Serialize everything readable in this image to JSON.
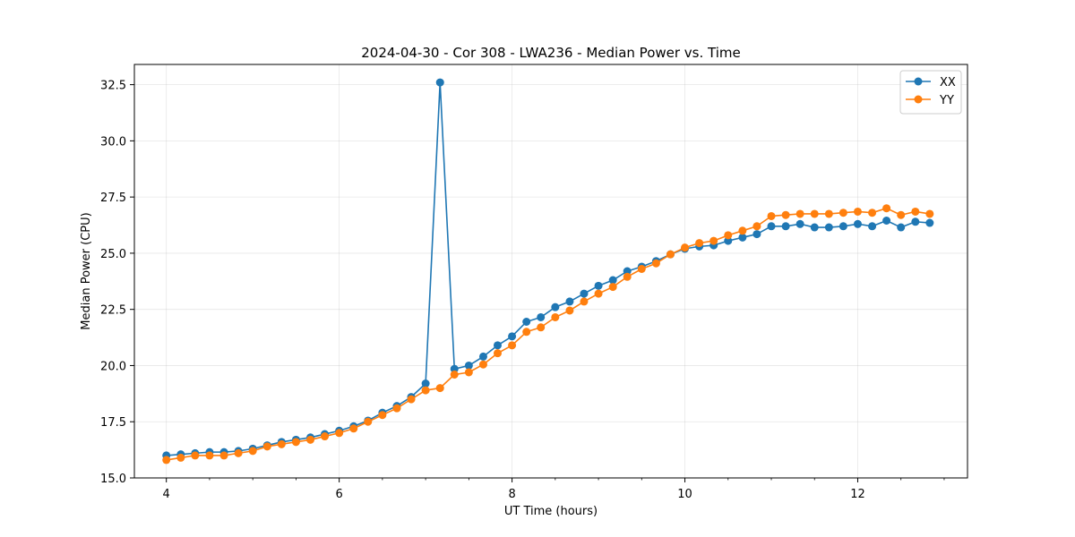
{
  "chart_data": {
    "type": "line",
    "title": "2024-04-30 - Cor 308 - LWA236 - Median Power vs. Time",
    "xlabel": "UT Time (hours)",
    "ylabel": "Median Power (CPU)",
    "xlim": [
      3.63,
      13.27
    ],
    "ylim": [
      15.0,
      33.4
    ],
    "xticks": [
      4,
      6,
      8,
      10,
      12
    ],
    "yticks": [
      15.0,
      17.5,
      20.0,
      22.5,
      25.0,
      27.5,
      30.0,
      32.5
    ],
    "xtick_labels": [
      "4",
      "6",
      "8",
      "10",
      "12"
    ],
    "ytick_labels": [
      "15.0",
      "17.5",
      "20.0",
      "22.5",
      "25.0",
      "27.5",
      "30.0",
      "32.5"
    ],
    "grid": true,
    "legend_position": "top-right",
    "x": [
      4.0,
      4.167,
      4.333,
      4.5,
      4.667,
      4.833,
      5.0,
      5.167,
      5.333,
      5.5,
      5.667,
      5.833,
      6.0,
      6.167,
      6.333,
      6.5,
      6.667,
      6.833,
      7.0,
      7.167,
      7.333,
      7.5,
      7.667,
      7.833,
      8.0,
      8.167,
      8.333,
      8.5,
      8.667,
      8.833,
      9.0,
      9.167,
      9.333,
      9.5,
      9.667,
      9.833,
      10.0,
      10.167,
      10.333,
      10.5,
      10.667,
      10.833,
      11.0,
      11.167,
      11.333,
      11.5,
      11.667,
      11.833,
      12.0,
      12.167,
      12.333,
      12.5,
      12.667,
      12.833
    ],
    "series": [
      {
        "name": "XX",
        "color": "#1f77b4",
        "values": [
          16.0,
          16.05,
          16.1,
          16.15,
          16.15,
          16.2,
          16.3,
          16.45,
          16.6,
          16.7,
          16.8,
          16.95,
          17.1,
          17.3,
          17.55,
          17.9,
          18.2,
          18.6,
          19.2,
          32.6,
          19.85,
          20.0,
          20.4,
          20.9,
          21.3,
          21.95,
          22.15,
          22.6,
          22.85,
          23.2,
          23.55,
          23.8,
          24.2,
          24.4,
          24.65,
          24.95,
          25.2,
          25.3,
          25.35,
          25.55,
          25.7,
          25.85,
          26.2,
          26.2,
          26.3,
          26.15,
          26.15,
          26.2,
          26.3,
          26.2,
          26.45,
          26.15,
          26.4,
          26.35
        ]
      },
      {
        "name": "YY",
        "color": "#ff7f0e",
        "values": [
          15.8,
          15.9,
          16.0,
          16.0,
          16.0,
          16.1,
          16.2,
          16.4,
          16.5,
          16.6,
          16.7,
          16.85,
          17.0,
          17.2,
          17.5,
          17.8,
          18.1,
          18.5,
          18.9,
          19.0,
          19.6,
          19.7,
          20.05,
          20.55,
          20.9,
          21.5,
          21.7,
          22.15,
          22.45,
          22.85,
          23.2,
          23.5,
          23.95,
          24.3,
          24.55,
          24.95,
          25.25,
          25.45,
          25.55,
          25.8,
          26.0,
          26.2,
          26.65,
          26.7,
          26.75,
          26.75,
          26.75,
          26.8,
          26.85,
          26.8,
          27.0,
          26.7,
          26.85,
          26.75
        ]
      }
    ]
  }
}
